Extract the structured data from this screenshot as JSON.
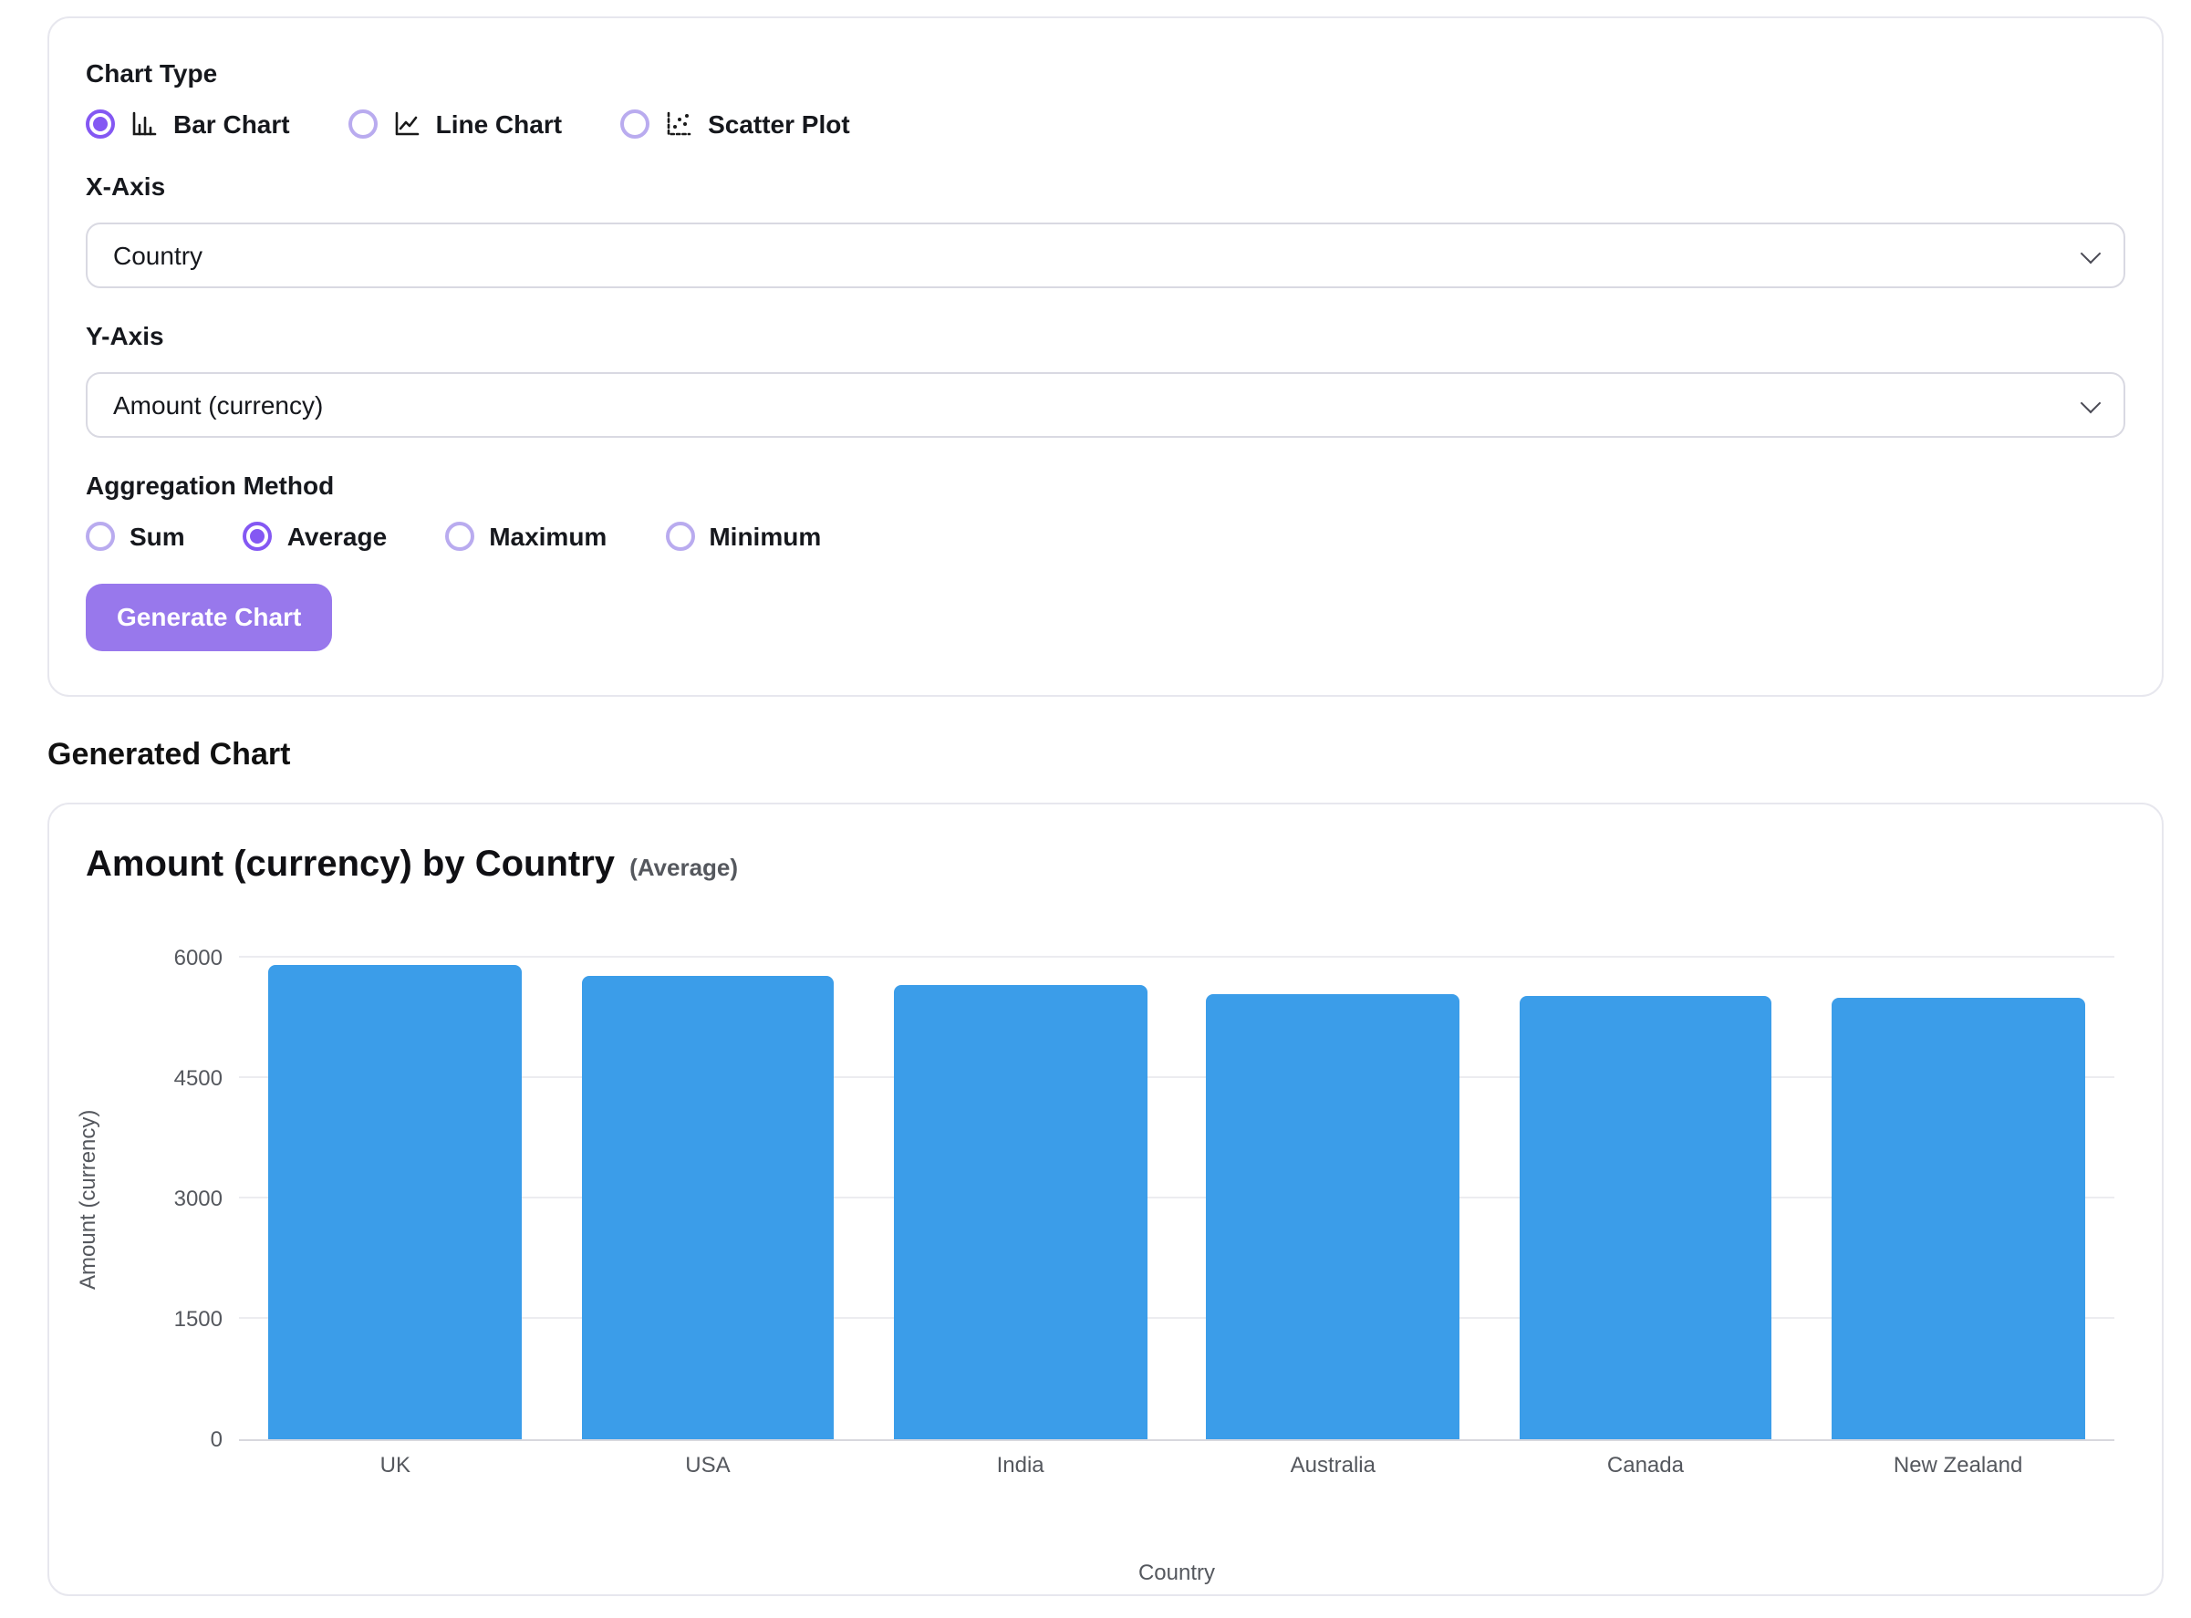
{
  "builder": {
    "chart_type": {
      "label": "Chart Type",
      "options": [
        {
          "label": "Bar Chart",
          "icon": "bar-chart-icon",
          "selected": true
        },
        {
          "label": "Line Chart",
          "icon": "line-chart-icon",
          "selected": false
        },
        {
          "label": "Scatter Plot",
          "icon": "scatter-plot-icon",
          "selected": false
        }
      ]
    },
    "x_axis": {
      "label": "X-Axis",
      "value": "Country"
    },
    "y_axis": {
      "label": "Y-Axis",
      "value": "Amount (currency)"
    },
    "aggregation": {
      "label": "Aggregation Method",
      "options": [
        {
          "label": "Sum",
          "selected": false
        },
        {
          "label": "Average",
          "selected": true
        },
        {
          "label": "Maximum",
          "selected": false
        },
        {
          "label": "Minimum",
          "selected": false
        }
      ]
    },
    "generate_button_label": "Generate Chart"
  },
  "section": {
    "title": "Generated Chart"
  },
  "chart_header": {
    "title": "Amount (currency) by Country",
    "subtitle": "(Average)"
  },
  "chart_data": {
    "type": "bar",
    "title": "Amount (currency) by Country (Average)",
    "categories": [
      "UK",
      "USA",
      "India",
      "Australia",
      "Canada",
      "New Zealand"
    ],
    "values": [
      5900,
      5780,
      5660,
      5550,
      5520,
      5500
    ],
    "xlabel": "Country",
    "ylabel": "Amount (currency)",
    "ylim": [
      0,
      6000
    ],
    "yticks": [
      0,
      1500,
      3000,
      4500,
      6000
    ],
    "grid": true,
    "legend": false,
    "bar_color": "#3b9de9"
  },
  "colors": {
    "accent": "#8458f3",
    "button_bg": "#9878ec",
    "bar": "#3b9de9",
    "grid_line": "#ececf0",
    "axis_line": "#d8d8de",
    "muted_text": "#55585e"
  }
}
